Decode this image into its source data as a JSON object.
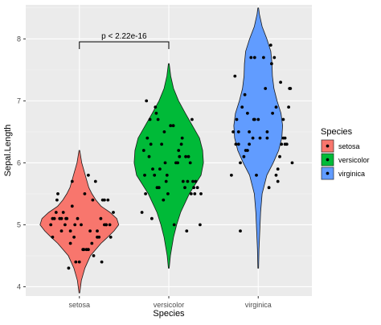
{
  "chart_data": {
    "type": "violin",
    "xlabel": "Species",
    "ylabel": "Sepal.Length",
    "categories": [
      "setosa",
      "versicolor",
      "virginica"
    ],
    "ylim": [
      3.85,
      8.55
    ],
    "yticks": [
      4,
      5,
      6,
      7,
      8
    ],
    "grid": true,
    "legend": {
      "title": "Species",
      "placement": "right",
      "entries": [
        "setosa",
        "versicolor",
        "virginica"
      ]
    },
    "annotation": {
      "text": "p < 2.22e-16",
      "from": "setosa",
      "to": "versicolor"
    },
    "colors": {
      "setosa": "#F8766D",
      "versicolor": "#00BA38",
      "virginica": "#619CFF",
      "panel": "#EBEBEB",
      "grid": "#FFFFFF"
    },
    "violins": [
      {
        "name": "setosa",
        "range": [
          3.9,
          6.2
        ],
        "width_profile": [
          [
            3.9,
            0.01
          ],
          [
            4.1,
            0.05
          ],
          [
            4.3,
            0.14
          ],
          [
            4.5,
            0.28
          ],
          [
            4.7,
            0.55
          ],
          [
            4.8,
            0.72
          ],
          [
            4.9,
            0.88
          ],
          [
            5.0,
            1.0
          ],
          [
            5.1,
            0.95
          ],
          [
            5.2,
            0.78
          ],
          [
            5.3,
            0.55
          ],
          [
            5.4,
            0.42
          ],
          [
            5.5,
            0.32
          ],
          [
            5.6,
            0.24
          ],
          [
            5.8,
            0.15
          ],
          [
            6.0,
            0.06
          ],
          [
            6.2,
            0.01
          ]
        ]
      },
      {
        "name": "versicolor",
        "range": [
          4.3,
          7.6
        ],
        "width_profile": [
          [
            4.3,
            0.01
          ],
          [
            4.5,
            0.04
          ],
          [
            4.8,
            0.12
          ],
          [
            5.0,
            0.2
          ],
          [
            5.2,
            0.3
          ],
          [
            5.5,
            0.52
          ],
          [
            5.7,
            0.72
          ],
          [
            5.8,
            0.82
          ],
          [
            6.0,
            0.88
          ],
          [
            6.2,
            0.86
          ],
          [
            6.4,
            0.78
          ],
          [
            6.6,
            0.6
          ],
          [
            6.8,
            0.42
          ],
          [
            7.0,
            0.25
          ],
          [
            7.2,
            0.12
          ],
          [
            7.4,
            0.05
          ],
          [
            7.6,
            0.01
          ]
        ]
      },
      {
        "name": "virginica",
        "range": [
          4.3,
          8.5
        ],
        "width_profile": [
          [
            4.3,
            0.01
          ],
          [
            4.6,
            0.02
          ],
          [
            4.9,
            0.04
          ],
          [
            5.2,
            0.06
          ],
          [
            5.5,
            0.1
          ],
          [
            5.8,
            0.22
          ],
          [
            6.0,
            0.38
          ],
          [
            6.2,
            0.52
          ],
          [
            6.4,
            0.6
          ],
          [
            6.6,
            0.62
          ],
          [
            6.8,
            0.58
          ],
          [
            7.0,
            0.48
          ],
          [
            7.2,
            0.4
          ],
          [
            7.4,
            0.36
          ],
          [
            7.6,
            0.35
          ],
          [
            7.8,
            0.32
          ],
          [
            8.0,
            0.22
          ],
          [
            8.2,
            0.1
          ],
          [
            8.4,
            0.03
          ],
          [
            8.5,
            0.01
          ]
        ]
      }
    ],
    "points": {
      "setosa": [
        [
          0.85,
          5.1
        ],
        [
          1.2,
          4.9
        ],
        [
          0.9,
          4.7
        ],
        [
          1.1,
          4.6
        ],
        [
          1.3,
          5.0
        ],
        [
          0.75,
          5.4
        ],
        [
          1.05,
          4.6
        ],
        [
          0.95,
          5.0
        ],
        [
          1.25,
          4.4
        ],
        [
          0.8,
          4.9
        ],
        [
          1.15,
          5.4
        ],
        [
          0.7,
          4.8
        ],
        [
          1.35,
          4.8
        ],
        [
          0.88,
          4.3
        ],
        [
          1.1,
          5.8
        ],
        [
          0.92,
          5.7
        ],
        [
          1.28,
          5.4
        ],
        [
          0.72,
          5.1
        ],
        [
          1.18,
          5.7
        ],
        [
          0.98,
          5.1
        ],
        [
          1.32,
          5.4
        ],
        [
          0.78,
          5.1
        ],
        [
          1.08,
          4.6
        ],
        [
          0.86,
          5.1
        ],
        [
          1.22,
          4.8
        ],
        [
          0.68,
          5.0
        ],
        [
          1.02,
          5.0
        ],
        [
          1.38,
          5.2
        ],
        [
          0.82,
          5.2
        ],
        [
          1.14,
          4.7
        ],
        [
          0.94,
          4.8
        ],
        [
          1.26,
          5.4
        ],
        [
          0.74,
          5.2
        ],
        [
          1.06,
          5.5
        ],
        [
          0.9,
          4.9
        ],
        [
          1.3,
          5.0
        ],
        [
          0.76,
          5.5
        ],
        [
          1.12,
          4.9
        ],
        [
          0.96,
          4.4
        ],
        [
          1.24,
          5.1
        ],
        [
          0.84,
          5.0
        ],
        [
          1.16,
          4.5
        ],
        [
          1.0,
          4.4
        ],
        [
          1.34,
          5.0
        ],
        [
          0.8,
          5.1
        ],
        [
          1.2,
          4.8
        ],
        [
          0.7,
          5.1
        ],
        [
          1.04,
          4.6
        ],
        [
          0.92,
          5.3
        ],
        [
          1.28,
          5.0
        ]
      ],
      "versicolor": [
        [
          1.75,
          7.0
        ],
        [
          2.15,
          6.4
        ],
        [
          1.85,
          6.9
        ],
        [
          2.25,
          5.5
        ],
        [
          1.95,
          6.5
        ],
        [
          2.3,
          5.7
        ],
        [
          1.8,
          6.3
        ],
        [
          2.2,
          4.9
        ],
        [
          2.05,
          6.6
        ],
        [
          1.7,
          5.2
        ],
        [
          2.35,
          5.0
        ],
        [
          1.9,
          5.9
        ],
        [
          2.1,
          6.0
        ],
        [
          1.78,
          6.1
        ],
        [
          2.28,
          5.6
        ],
        [
          1.88,
          6.7
        ],
        [
          2.18,
          5.6
        ],
        [
          1.98,
          5.8
        ],
        [
          1.72,
          6.2
        ],
        [
          2.32,
          5.6
        ],
        [
          1.82,
          5.9
        ],
        [
          2.12,
          6.1
        ],
        [
          1.92,
          6.3
        ],
        [
          2.22,
          6.1
        ],
        [
          1.76,
          6.4
        ],
        [
          2.02,
          6.6
        ],
        [
          1.86,
          6.8
        ],
        [
          2.26,
          6.7
        ],
        [
          1.96,
          6.0
        ],
        [
          2.16,
          5.7
        ],
        [
          1.74,
          5.5
        ],
        [
          2.36,
          5.5
        ],
        [
          1.84,
          5.8
        ],
        [
          2.08,
          6.0
        ],
        [
          1.94,
          5.4
        ],
        [
          2.24,
          6.0
        ],
        [
          1.79,
          6.7
        ],
        [
          2.14,
          6.3
        ],
        [
          1.89,
          5.6
        ],
        [
          2.29,
          5.5
        ],
        [
          1.99,
          5.5
        ],
        [
          2.19,
          6.1
        ],
        [
          1.73,
          5.8
        ],
        [
          2.06,
          5.0
        ],
        [
          1.87,
          5.6
        ],
        [
          2.27,
          5.7
        ],
        [
          1.97,
          5.7
        ],
        [
          2.11,
          6.2
        ],
        [
          1.81,
          5.1
        ],
        [
          2.21,
          5.7
        ]
      ],
      "virginica": [
        [
          2.75,
          6.3
        ],
        [
          3.2,
          5.8
        ],
        [
          2.85,
          7.1
        ],
        [
          3.3,
          6.3
        ],
        [
          2.9,
          6.5
        ],
        [
          3.15,
          7.6
        ],
        [
          2.8,
          4.9
        ],
        [
          3.25,
          7.3
        ],
        [
          2.95,
          6.7
        ],
        [
          3.35,
          7.2
        ],
        [
          2.78,
          6.5
        ],
        [
          3.1,
          6.4
        ],
        [
          2.88,
          6.8
        ],
        [
          3.22,
          5.7
        ],
        [
          2.98,
          5.8
        ],
        [
          3.28,
          6.4
        ],
        [
          2.72,
          6.5
        ],
        [
          3.18,
          7.7
        ],
        [
          2.92,
          7.7
        ],
        [
          3.38,
          6.0
        ],
        [
          2.82,
          6.9
        ],
        [
          3.12,
          5.6
        ],
        [
          2.96,
          7.7
        ],
        [
          3.32,
          6.3
        ],
        [
          2.76,
          6.7
        ],
        [
          3.08,
          7.2
        ],
        [
          2.86,
          6.2
        ],
        [
          3.24,
          6.1
        ],
        [
          3.02,
          6.4
        ],
        [
          3.36,
          7.2
        ],
        [
          2.74,
          7.4
        ],
        [
          3.14,
          7.9
        ],
        [
          2.94,
          6.4
        ],
        [
          3.26,
          6.3
        ],
        [
          2.84,
          6.1
        ],
        [
          3.06,
          7.7
        ],
        [
          2.9,
          6.3
        ],
        [
          3.3,
          6.4
        ],
        [
          2.8,
          6.0
        ],
        [
          3.2,
          6.9
        ],
        [
          3.0,
          6.7
        ],
        [
          3.34,
          6.9
        ],
        [
          2.7,
          5.8
        ],
        [
          3.16,
          6.8
        ],
        [
          2.96,
          6.7
        ],
        [
          3.28,
          6.7
        ],
        [
          2.78,
          6.3
        ],
        [
          3.1,
          6.5
        ],
        [
          2.88,
          6.2
        ],
        [
          3.22,
          5.9
        ]
      ]
    }
  }
}
